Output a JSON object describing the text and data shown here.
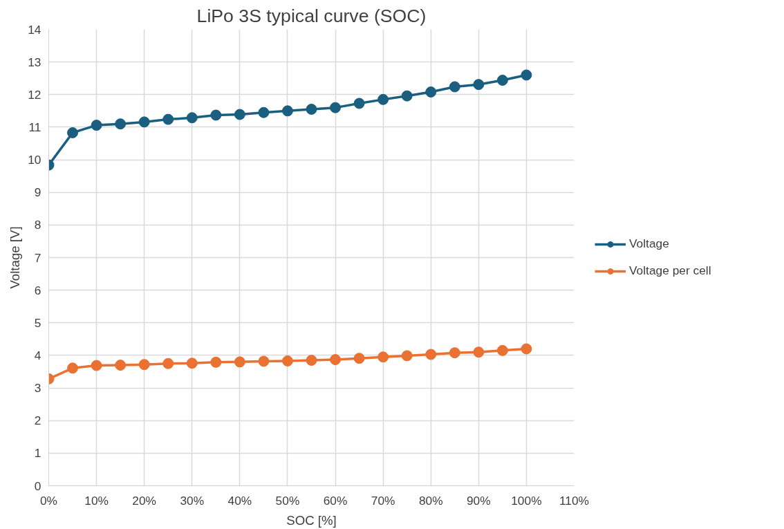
{
  "chart_data": {
    "type": "line",
    "title": "LiPo 3S typical curve (SOC)",
    "xlabel": "SOC [%]",
    "ylabel": "Voltage [V]",
    "x": [
      0,
      5,
      10,
      15,
      20,
      25,
      30,
      35,
      40,
      45,
      50,
      55,
      60,
      65,
      70,
      75,
      80,
      85,
      90,
      95,
      100
    ],
    "series": [
      {
        "name": "Voltage",
        "color": "#1a5e80",
        "values": [
          9.84,
          10.83,
          11.06,
          11.1,
          11.16,
          11.24,
          11.29,
          11.37,
          11.39,
          11.45,
          11.5,
          11.55,
          11.6,
          11.73,
          11.85,
          11.96,
          12.08,
          12.24,
          12.31,
          12.44,
          12.6
        ]
      },
      {
        "name": "Voltage per cell",
        "color": "#e97132",
        "values": [
          3.28,
          3.61,
          3.69,
          3.7,
          3.72,
          3.75,
          3.76,
          3.79,
          3.8,
          3.82,
          3.83,
          3.85,
          3.87,
          3.91,
          3.95,
          3.99,
          4.03,
          4.08,
          4.1,
          4.15,
          4.2
        ]
      }
    ],
    "xlim": [
      0,
      110
    ],
    "xticks": [
      {
        "value": 0,
        "label": "0%"
      },
      {
        "value": 10,
        "label": "10%"
      },
      {
        "value": 20,
        "label": "20%"
      },
      {
        "value": 30,
        "label": "30%"
      },
      {
        "value": 40,
        "label": "40%"
      },
      {
        "value": 50,
        "label": "50%"
      },
      {
        "value": 60,
        "label": "60%"
      },
      {
        "value": 70,
        "label": "70%"
      },
      {
        "value": 80,
        "label": "80%"
      },
      {
        "value": 90,
        "label": "90%"
      },
      {
        "value": 100,
        "label": "100%"
      },
      {
        "value": 110,
        "label": "110%"
      }
    ],
    "ylim": [
      0,
      14
    ],
    "yticks": [
      0,
      1,
      2,
      3,
      4,
      5,
      6,
      7,
      8,
      9,
      10,
      11,
      12,
      13,
      14
    ],
    "grid": true,
    "legend": "right",
    "marker": "circle",
    "line_style": "solid"
  }
}
